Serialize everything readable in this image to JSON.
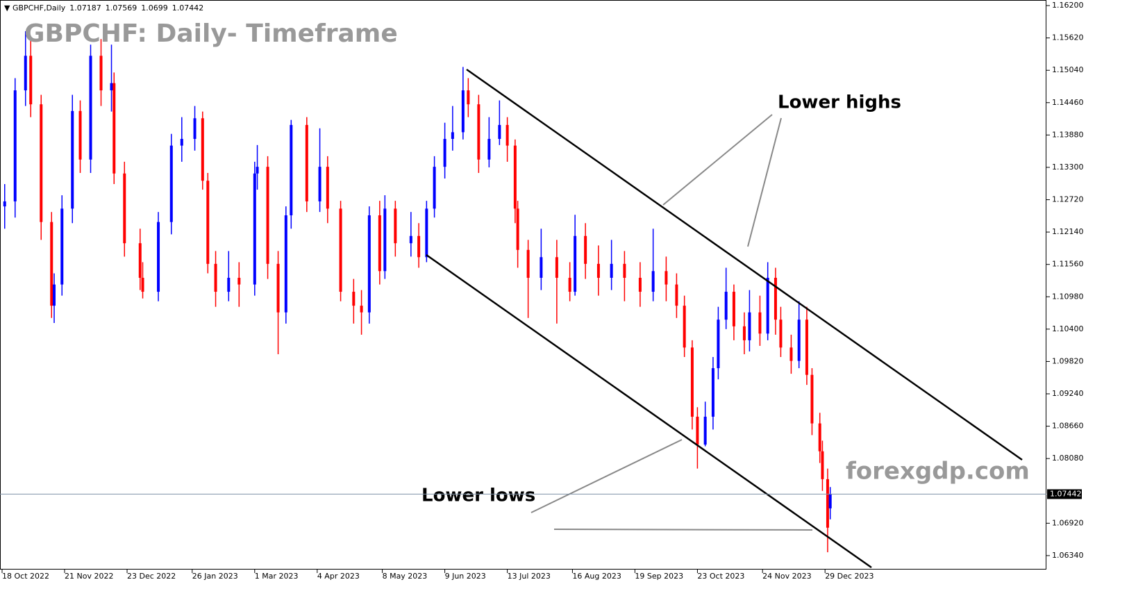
{
  "chart_data": {
    "type": "candlestick",
    "symbol": "GBPCHF,Daily",
    "title": "GBPCHF: Daily- Timeframe",
    "annotations": [
      "Lower highs",
      "Lower lows"
    ],
    "watermark": "forexgdp.com",
    "up_color": "#0000ff",
    "down_color": "#ff0000",
    "x": [
      1,
      5,
      9,
      11,
      15,
      19,
      20,
      23,
      27,
      30,
      34,
      38,
      42,
      43,
      47,
      53,
      54,
      60,
      65,
      69,
      74,
      77,
      79,
      82,
      87,
      91,
      97,
      98,
      102,
      106,
      109,
      111,
      117,
      122,
      125,
      130,
      135,
      138,
      141,
      145,
      147,
      151,
      157,
      160,
      163,
      166,
      170,
      173,
      177,
      179,
      183,
      187,
      191,
      194,
      197,
      198,
      202,
      207,
      213,
      218,
      220,
      224,
      229,
      234,
      239,
      245,
      250,
      255,
      259,
      262,
      265,
      267,
      270,
      273,
      275,
      278,
      281,
      285,
      287,
      291,
      294,
      297,
      299,
      303,
      306,
      309,
      311,
      314,
      315,
      317,
      318
    ],
    "open": [
      1.126,
      1.1269,
      1.1468,
      1.153,
      1.1443,
      1.1232,
      1.1082,
      1.112,
      1.1256,
      1.1431,
      1.1344,
      1.153,
      1.1468,
      1.1481,
      1.1319,
      1.1194,
      1.1132,
      1.1107,
      1.1232,
      1.1369,
      1.1381,
      1.1418,
      1.1306,
      1.1157,
      1.1107,
      1.1132,
      1.112,
      1.1319,
      1.1331,
      1.1157,
      1.107,
      1.1244,
      1.1406,
      1.1269,
      1.1331,
      1.1256,
      1.1107,
      1.1082,
      1.107,
      1.1244,
      1.1144,
      1.1256,
      1.1194,
      1.1207,
      1.1169,
      1.1256,
      1.1331,
      1.1381,
      1.1393,
      1.1468,
      1.1443,
      1.1344,
      1.1381,
      1.1406,
      1.1369,
      1.1256,
      1.1182,
      1.1132,
      1.1169,
      1.1132,
      1.1107,
      1.1207,
      1.1157,
      1.1132,
      1.1157,
      1.1132,
      1.1107,
      1.1144,
      1.112,
      1.1082,
      1.1007,
      1.0883,
      1.0833,
      1.0883,
      1.097,
      1.1057,
      1.1107,
      1.1045,
      1.102,
      1.107,
      1.1032,
      1.1132,
      1.1057,
      1.1007,
      1.0983,
      1.1057,
      1.0958,
      1.0871,
      1.0821,
      1.0771,
      1.07187
    ],
    "high": [
      1.13,
      1.149,
      1.1574,
      1.156,
      1.146,
      1.125,
      1.114,
      1.128,
      1.146,
      1.145,
      1.155,
      1.156,
      1.155,
      1.15,
      1.134,
      1.122,
      1.116,
      1.125,
      1.139,
      1.142,
      1.144,
      1.143,
      1.132,
      1.118,
      1.118,
      1.116,
      1.134,
      1.137,
      1.135,
      1.118,
      1.126,
      1.1415,
      1.142,
      1.14,
      1.135,
      1.127,
      1.113,
      1.111,
      1.126,
      1.127,
      1.128,
      1.127,
      1.125,
      1.123,
      1.127,
      1.135,
      1.141,
      1.144,
      1.151,
      1.149,
      1.146,
      1.142,
      1.145,
      1.142,
      1.138,
      1.127,
      1.12,
      1.122,
      1.12,
      1.116,
      1.1245,
      1.123,
      1.119,
      1.12,
      1.118,
      1.116,
      1.122,
      1.117,
      1.114,
      1.11,
      1.102,
      1.09,
      1.091,
      1.099,
      1.108,
      1.115,
      1.112,
      1.107,
      1.111,
      1.11,
      1.116,
      1.115,
      1.108,
      1.103,
      1.109,
      1.108,
      1.097,
      1.089,
      1.084,
      1.079,
      1.07569
    ],
    "low": [
      1.122,
      1.124,
      1.144,
      1.142,
      1.12,
      1.106,
      1.1051,
      1.11,
      1.123,
      1.132,
      1.132,
      1.144,
      1.143,
      1.13,
      1.117,
      1.111,
      1.1095,
      1.109,
      1.121,
      1.134,
      1.136,
      1.129,
      1.114,
      1.108,
      1.109,
      1.108,
      1.11,
      1.129,
      1.113,
      1.0995,
      1.105,
      1.122,
      1.125,
      1.125,
      1.123,
      1.109,
      1.105,
      1.103,
      1.105,
      1.112,
      1.113,
      1.117,
      1.117,
      1.115,
      1.116,
      1.124,
      1.131,
      1.136,
      1.138,
      1.142,
      1.132,
      1.133,
      1.137,
      1.134,
      1.123,
      1.115,
      1.106,
      1.111,
      1.105,
      1.109,
      1.11,
      1.113,
      1.11,
      1.111,
      1.109,
      1.108,
      1.109,
      1.109,
      1.106,
      1.099,
      1.086,
      1.079,
      1.083,
      1.086,
      1.095,
      1.104,
      1.102,
      1.0995,
      1.1,
      1.101,
      1.102,
      1.103,
      1.099,
      1.096,
      1.097,
      1.094,
      1.085,
      1.08,
      1.075,
      1.064,
      1.0699
    ],
    "close": [
      1.1269,
      1.1468,
      1.153,
      1.1443,
      1.1232,
      1.1082,
      1.112,
      1.1256,
      1.1431,
      1.1344,
      1.153,
      1.1468,
      1.1481,
      1.1319,
      1.1194,
      1.1132,
      1.1107,
      1.1232,
      1.1369,
      1.1381,
      1.1418,
      1.1306,
      1.1157,
      1.1107,
      1.1132,
      1.112,
      1.1319,
      1.1331,
      1.1157,
      1.107,
      1.1244,
      1.1406,
      1.1269,
      1.1331,
      1.1256,
      1.1107,
      1.1082,
      1.107,
      1.1244,
      1.1144,
      1.1256,
      1.1194,
      1.1207,
      1.1169,
      1.1256,
      1.1331,
      1.1381,
      1.1393,
      1.1468,
      1.1443,
      1.1344,
      1.1381,
      1.1406,
      1.1369,
      1.1256,
      1.1182,
      1.1132,
      1.1169,
      1.1132,
      1.1107,
      1.1207,
      1.1157,
      1.1132,
      1.1157,
      1.1132,
      1.1107,
      1.1144,
      1.112,
      1.1082,
      1.1007,
      1.0883,
      1.0833,
      1.0883,
      1.097,
      1.1057,
      1.1107,
      1.1045,
      1.102,
      1.107,
      1.1032,
      1.1132,
      1.1057,
      1.1007,
      1.0983,
      1.1057,
      1.0958,
      1.0871,
      1.0821,
      1.0771,
      1.0684,
      1.07442
    ],
    "xlim": [
      -0.8,
      401
    ],
    "xticks": [
      {
        "value": 0,
        "label": "18 Oct 2022"
      },
      {
        "value": 24,
        "label": "21 Nov 2022"
      },
      {
        "value": 48,
        "label": "23 Dec 2022"
      },
      {
        "value": 73,
        "label": "26 Jan 2023"
      },
      {
        "value": 97,
        "label": "1 Mar 2023"
      },
      {
        "value": 121,
        "label": "4 Apr 2023"
      },
      {
        "value": 146,
        "label": "8 May 2023"
      },
      {
        "value": 170,
        "label": "9 Jun 2023"
      },
      {
        "value": 194,
        "label": "13 Jul 2023"
      },
      {
        "value": 219,
        "label": "16 Aug 2023"
      },
      {
        "value": 243,
        "label": "19 Sep 2023"
      },
      {
        "value": 267,
        "label": "23 Oct 2023"
      },
      {
        "value": 292,
        "label": "24 Nov 2023"
      },
      {
        "value": 316,
        "label": "29 Dec 2023"
      }
    ],
    "ylim": [
      1.0609,
      1.163
    ],
    "yticks": [
      {
        "value": 1.162,
        "label": "1.16200"
      },
      {
        "value": 1.1562,
        "label": "1.15620"
      },
      {
        "value": 1.1504,
        "label": "1.15040"
      },
      {
        "value": 1.1446,
        "label": "1.14460"
      },
      {
        "value": 1.1388,
        "label": "1.13880"
      },
      {
        "value": 1.133,
        "label": "1.13300"
      },
      {
        "value": 1.1272,
        "label": "1.12720"
      },
      {
        "value": 1.1214,
        "label": "1.12140"
      },
      {
        "value": 1.1156,
        "label": "1.11560"
      },
      {
        "value": 1.1098,
        "label": "1.10980"
      },
      {
        "value": 1.104,
        "label": "1.10400"
      },
      {
        "value": 1.0982,
        "label": "1.09820"
      },
      {
        "value": 1.0924,
        "label": "1.09240"
      },
      {
        "value": 1.0866,
        "label": "1.08660"
      },
      {
        "value": 1.0808,
        "label": "1.08080"
      },
      {
        "value": 1.0692,
        "label": "1.06920"
      },
      {
        "value": 1.0634,
        "label": "1.06340"
      }
    ]
  }
}
